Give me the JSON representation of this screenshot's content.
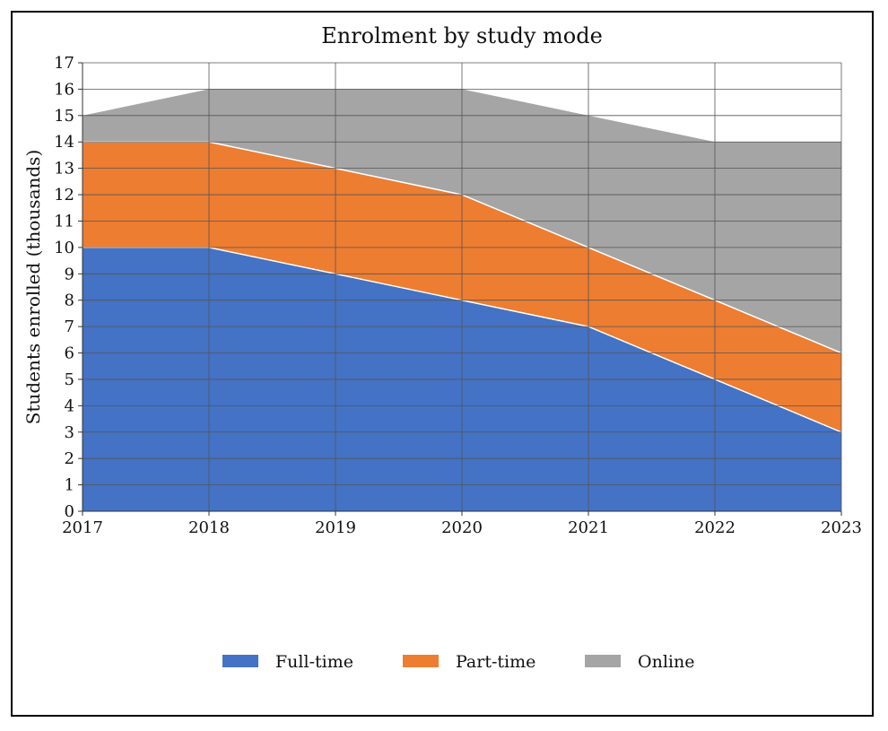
{
  "chart_data": {
    "type": "area",
    "stacked": true,
    "title": "Enrolment by study mode",
    "xlabel": "",
    "ylabel": "Students enrolled (thousands)",
    "x": [
      2017,
      2018,
      2019,
      2020,
      2021,
      2022,
      2023
    ],
    "xlim": [
      2017,
      2023
    ],
    "ylim": [
      0,
      17
    ],
    "yticks": [
      0,
      1,
      2,
      3,
      4,
      5,
      6,
      7,
      8,
      9,
      10,
      11,
      12,
      13,
      14,
      15,
      16,
      17
    ],
    "grid": true,
    "legend_position": "bottom",
    "series": [
      {
        "name": "Full-time",
        "color": "#4472c4",
        "values": [
          10,
          10,
          9,
          8,
          7,
          5,
          3
        ]
      },
      {
        "name": "Part-time",
        "color": "#ed7d31",
        "values": [
          4,
          4,
          4,
          4,
          3,
          3,
          3
        ]
      },
      {
        "name": "Online",
        "color": "#a5a5a5",
        "values": [
          1,
          2,
          3,
          4,
          5,
          6,
          8
        ]
      }
    ]
  }
}
